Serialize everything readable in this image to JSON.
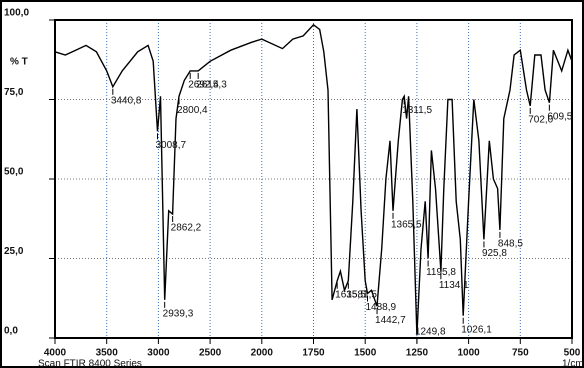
{
  "chart_data": {
    "type": "line",
    "y_label": "% T",
    "footer": "Scan FTIR 8400 Series",
    "x_unit": "1/cm",
    "color": "#000000",
    "grid": true,
    "xlim": [
      4000,
      500
    ],
    "xticks": [
      4000,
      3500,
      3000,
      2500,
      2000,
      1750,
      1500,
      1250,
      1000,
      750,
      500
    ],
    "ylim": [
      0,
      100
    ],
    "yticks": [
      {
        "value": 0,
        "label": "0,0"
      },
      {
        "value": 25,
        "label": "25,0"
      },
      {
        "value": 50,
        "label": "50,0"
      },
      {
        "value": 75,
        "label": "75,0"
      },
      {
        "value": 100,
        "label": "100,0"
      }
    ],
    "x": [
      4000,
      3900,
      3800,
      3700,
      3600,
      3500,
      3440.8,
      3350,
      3200,
      3100,
      3050,
      3008.7,
      2980,
      2939.3,
      2900,
      2862.2,
      2830,
      2800.4,
      2750,
      2692.4,
      2615.3,
      2500,
      2300,
      2100,
      2000,
      1900,
      1850,
      1800,
      1750,
      1720,
      1700,
      1680,
      1660,
      1635.5,
      1620,
      1600,
      1581.5,
      1560,
      1540,
      1520,
      1500,
      1488.9,
      1470,
      1442.7,
      1420,
      1400,
      1380,
      1365.5,
      1340,
      1320,
      1311.5,
      1300,
      1290,
      1270,
      1249.8,
      1230,
      1210,
      1195.8,
      1180,
      1160,
      1134.1,
      1120,
      1100,
      1080,
      1060,
      1040,
      1026.1,
      1000,
      975,
      950,
      925.8,
      900,
      880,
      860,
      848.5,
      830,
      800,
      780,
      750,
      720,
      702.0,
      680,
      650,
      630,
      609.5,
      590,
      550,
      520,
      500
    ],
    "values": [
      90,
      89,
      90.5,
      92,
      90,
      84,
      79,
      84,
      90,
      92,
      87,
      65,
      76,
      12,
      40,
      39,
      69,
      76,
      81,
      84,
      84,
      87,
      90.5,
      93,
      94,
      91,
      94,
      95,
      98.5,
      97,
      90,
      78,
      12,
      18,
      21,
      15,
      18,
      43,
      72,
      40,
      18,
      14,
      15,
      10,
      28,
      50,
      62,
      40,
      62,
      75,
      76,
      69,
      76,
      43,
      1,
      28,
      43,
      25,
      59,
      47,
      21,
      47,
      75,
      75,
      43,
      31,
      7,
      43,
      75,
      62,
      31,
      62,
      50,
      47,
      34,
      69,
      78,
      89,
      90.5,
      78,
      73,
      89,
      89,
      78,
      74,
      90.5,
      84,
      90.5,
      87
    ],
    "peaks": [
      {
        "value": 3440.8,
        "label": "3440,8"
      },
      {
        "value": 3008.7,
        "label": "3008,7"
      },
      {
        "value": 2939.3,
        "label": "2939,3"
      },
      {
        "value": 2862.2,
        "label": "2862,2"
      },
      {
        "value": 2800.4,
        "label": "2800,4"
      },
      {
        "value": 2692.4,
        "label": "2692,4"
      },
      {
        "value": 2615.3,
        "label": "2615,3"
      },
      {
        "value": 1635.5,
        "label": "1635,5"
      },
      {
        "value": 1581.5,
        "label": "1581,5"
      },
      {
        "value": 1488.9,
        "label": "1488,9"
      },
      {
        "value": 1442.7,
        "label": "1442,7"
      },
      {
        "value": 1365.5,
        "label": "1365,5"
      },
      {
        "value": 1311.5,
        "label": "1311,5"
      },
      {
        "value": 1249.8,
        "label": "1249,8"
      },
      {
        "value": 1195.8,
        "label": "1195,8"
      },
      {
        "value": 1134.1,
        "label": "1134,1"
      },
      {
        "value": 1026.1,
        "label": "1026,1"
      },
      {
        "value": 925.8,
        "label": "925,8"
      },
      {
        "value": 848.5,
        "label": "848,5"
      },
      {
        "value": 702.0,
        "label": "702,0"
      },
      {
        "value": 609.5,
        "label": "609,5"
      }
    ]
  }
}
